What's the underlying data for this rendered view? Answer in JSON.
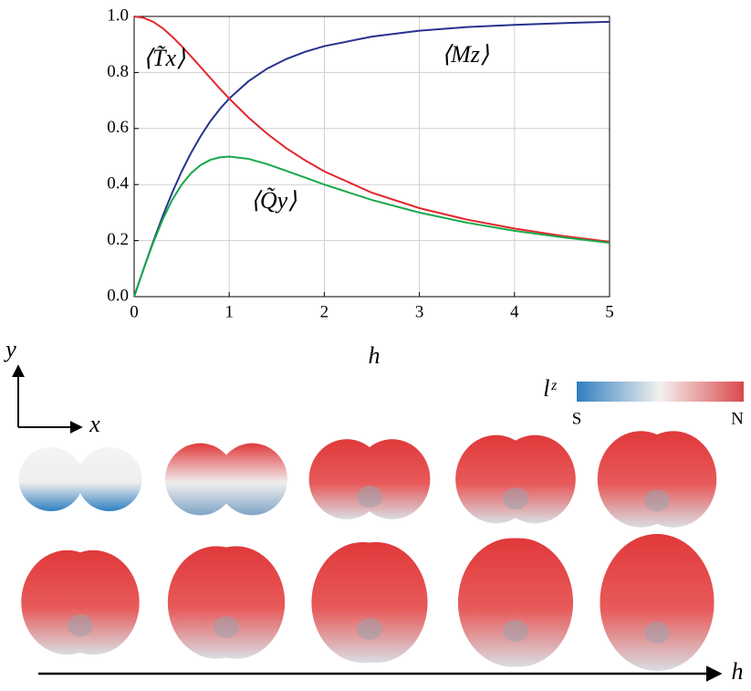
{
  "chart_data": {
    "type": "line",
    "xlabel": "h",
    "x": [
      0,
      0.1,
      0.2,
      0.3,
      0.4,
      0.5,
      0.6,
      0.7,
      0.8,
      0.9,
      1,
      1.2,
      1.4,
      1.6,
      1.8,
      2,
      2.5,
      3,
      3.5,
      4,
      4.5,
      5
    ],
    "series": [
      {
        "name": "⟨Mz⟩",
        "color": "#27318f",
        "values": [
          0,
          0.0995,
          0.196,
          0.287,
          0.371,
          0.447,
          0.514,
          0.573,
          0.625,
          0.669,
          0.707,
          0.768,
          0.814,
          0.848,
          0.874,
          0.894,
          0.928,
          0.949,
          0.962,
          0.97,
          0.976,
          0.981
        ]
      },
      {
        "name": "⟨T̃x⟩",
        "color": "#e2262b",
        "values": [
          1,
          0.995,
          0.981,
          0.958,
          0.928,
          0.894,
          0.857,
          0.819,
          0.781,
          0.743,
          0.707,
          0.64,
          0.581,
          0.53,
          0.486,
          0.447,
          0.371,
          0.316,
          0.275,
          0.243,
          0.217,
          0.196
        ]
      },
      {
        "name": "⟨Q̃y⟩",
        "color": "#17a84b",
        "values": [
          0,
          0.099,
          0.192,
          0.275,
          0.345,
          0.4,
          0.441,
          0.47,
          0.488,
          0.497,
          0.5,
          0.492,
          0.473,
          0.449,
          0.425,
          0.4,
          0.345,
          0.3,
          0.264,
          0.235,
          0.212,
          0.192
        ]
      }
    ],
    "xlim": [
      0,
      5
    ],
    "xticks": [
      0,
      1,
      2,
      3,
      4,
      5
    ],
    "ylim": [
      0,
      1
    ],
    "yticks": [
      {
        "value": 0,
        "label": "0.0"
      },
      0.2,
      0.4,
      0.6,
      0.8,
      {
        "value": 1,
        "label": "1.0"
      }
    ],
    "grid": true
  },
  "illustration": {
    "axis_labels": [
      "y",
      "x"
    ],
    "colorbar": {
      "label": "lᶻ",
      "min_label": "S",
      "max_label": "N"
    },
    "arrow_label": "h"
  }
}
